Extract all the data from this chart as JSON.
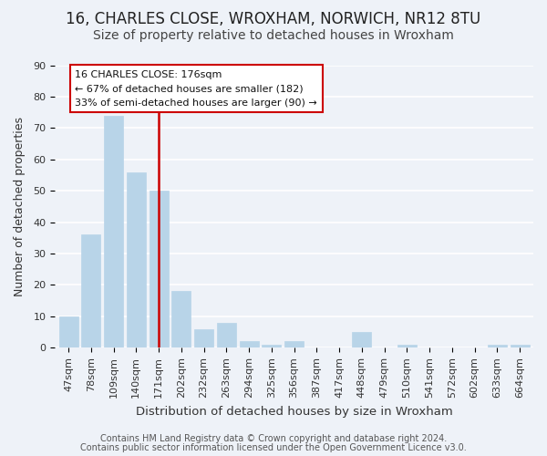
{
  "title": "16, CHARLES CLOSE, WROXHAM, NORWICH, NR12 8TU",
  "subtitle": "Size of property relative to detached houses in Wroxham",
  "xlabel": "Distribution of detached houses by size in Wroxham",
  "ylabel": "Number of detached properties",
  "bar_color": "#b8d4e8",
  "categories": [
    "47sqm",
    "78sqm",
    "109sqm",
    "140sqm",
    "171sqm",
    "202sqm",
    "232sqm",
    "263sqm",
    "294sqm",
    "325sqm",
    "356sqm",
    "387sqm",
    "417sqm",
    "448sqm",
    "479sqm",
    "510sqm",
    "541sqm",
    "572sqm",
    "602sqm",
    "633sqm",
    "664sqm"
  ],
  "values": [
    10,
    36,
    74,
    56,
    50,
    18,
    6,
    8,
    2,
    1,
    2,
    0,
    0,
    5,
    0,
    1,
    0,
    0,
    0,
    1,
    1
  ],
  "vline_x": 4,
  "vline_color": "#cc0000",
  "annotation_title": "16 CHARLES CLOSE: 176sqm",
  "annotation_line1": "← 67% of detached houses are smaller (182)",
  "annotation_line2": "33% of semi-detached houses are larger (90) →",
  "annotation_box_color": "#ffffff",
  "annotation_box_edge": "#cc0000",
  "ylim": [
    0,
    90
  ],
  "yticks": [
    0,
    10,
    20,
    30,
    40,
    50,
    60,
    70,
    80,
    90
  ],
  "footer1": "Contains HM Land Registry data © Crown copyright and database right 2024.",
  "footer2": "Contains public sector information licensed under the Open Government Licence v3.0.",
  "background_color": "#eef2f8",
  "grid_color": "#ffffff",
  "title_fontsize": 12,
  "subtitle_fontsize": 10,
  "xlabel_fontsize": 9.5,
  "ylabel_fontsize": 9,
  "tick_fontsize": 8,
  "footer_fontsize": 7,
  "annotation_fontsize": 8
}
